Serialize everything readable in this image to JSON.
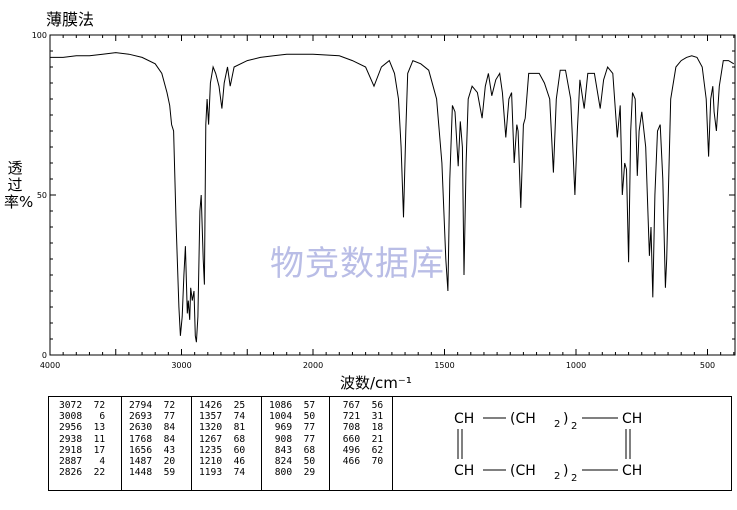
{
  "title": "薄膜法",
  "watermark": "物竞数据库",
  "chart_data": {
    "type": "line",
    "ylabel": "透过率%",
    "xlabel": "波数/cm⁻¹",
    "xlim": [
      4000,
      400
    ],
    "ylim": [
      0,
      100
    ],
    "x_ticks": [
      "4000",
      "3000",
      "2000",
      "1500",
      "1000",
      "500"
    ],
    "y_ticks": [
      "0",
      "50",
      "100"
    ],
    "spectrum": [
      [
        4000,
        93
      ],
      [
        3900,
        93
      ],
      [
        3800,
        93.5
      ],
      [
        3700,
        93.5
      ],
      [
        3600,
        94
      ],
      [
        3500,
        94.5
      ],
      [
        3400,
        94
      ],
      [
        3300,
        93
      ],
      [
        3200,
        91
      ],
      [
        3150,
        88
      ],
      [
        3110,
        82
      ],
      [
        3090,
        78
      ],
      [
        3075,
        72
      ],
      [
        3060,
        70
      ],
      [
        3040,
        40
      ],
      [
        3020,
        15
      ],
      [
        3008,
        6
      ],
      [
        2995,
        12
      ],
      [
        2982,
        25
      ],
      [
        2970,
        34
      ],
      [
        2956,
        13
      ],
      [
        2948,
        17
      ],
      [
        2938,
        11
      ],
      [
        2930,
        21
      ],
      [
        2918,
        17
      ],
      [
        2905,
        20
      ],
      [
        2895,
        6
      ],
      [
        2887,
        4
      ],
      [
        2875,
        12
      ],
      [
        2860,
        45
      ],
      [
        2850,
        50
      ],
      [
        2835,
        30
      ],
      [
        2826,
        22
      ],
      [
        2815,
        72
      ],
      [
        2805,
        80
      ],
      [
        2794,
        72
      ],
      [
        2780,
        85
      ],
      [
        2760,
        90
      ],
      [
        2740,
        88
      ],
      [
        2715,
        84
      ],
      [
        2693,
        77
      ],
      [
        2675,
        85
      ],
      [
        2650,
        90
      ],
      [
        2630,
        84
      ],
      [
        2600,
        90
      ],
      [
        2500,
        92
      ],
      [
        2400,
        93
      ],
      [
        2300,
        93.5
      ],
      [
        2200,
        94
      ],
      [
        2100,
        94
      ],
      [
        2000,
        94
      ],
      [
        1900,
        93.5
      ],
      [
        1850,
        92
      ],
      [
        1800,
        90
      ],
      [
        1768,
        84
      ],
      [
        1740,
        90
      ],
      [
        1710,
        92
      ],
      [
        1690,
        88
      ],
      [
        1675,
        80
      ],
      [
        1665,
        65
      ],
      [
        1656,
        43
      ],
      [
        1647,
        70
      ],
      [
        1640,
        88
      ],
      [
        1620,
        92
      ],
      [
        1590,
        91
      ],
      [
        1560,
        89
      ],
      [
        1530,
        80
      ],
      [
        1510,
        60
      ],
      [
        1495,
        30
      ],
      [
        1487,
        20
      ],
      [
        1480,
        55
      ],
      [
        1470,
        78
      ],
      [
        1460,
        76
      ],
      [
        1448,
        59
      ],
      [
        1440,
        73
      ],
      [
        1432,
        65
      ],
      [
        1426,
        25
      ],
      [
        1418,
        60
      ],
      [
        1410,
        80
      ],
      [
        1395,
        84
      ],
      [
        1375,
        82
      ],
      [
        1357,
        74
      ],
      [
        1345,
        84
      ],
      [
        1333,
        88
      ],
      [
        1320,
        81
      ],
      [
        1305,
        86
      ],
      [
        1290,
        88
      ],
      [
        1280,
        82
      ],
      [
        1267,
        68
      ],
      [
        1255,
        80
      ],
      [
        1245,
        82
      ],
      [
        1235,
        60
      ],
      [
        1225,
        72
      ],
      [
        1220,
        70
      ],
      [
        1210,
        46
      ],
      [
        1200,
        72
      ],
      [
        1193,
        74
      ],
      [
        1180,
        88
      ],
      [
        1160,
        88
      ],
      [
        1140,
        88
      ],
      [
        1120,
        85
      ],
      [
        1100,
        80
      ],
      [
        1086,
        57
      ],
      [
        1075,
        80
      ],
      [
        1060,
        89
      ],
      [
        1040,
        89
      ],
      [
        1020,
        80
      ],
      [
        1004,
        50
      ],
      [
        995,
        70
      ],
      [
        985,
        86
      ],
      [
        969,
        77
      ],
      [
        955,
        88
      ],
      [
        930,
        88
      ],
      [
        908,
        77
      ],
      [
        895,
        86
      ],
      [
        880,
        90
      ],
      [
        860,
        88
      ],
      [
        843,
        68
      ],
      [
        832,
        78
      ],
      [
        824,
        50
      ],
      [
        815,
        60
      ],
      [
        808,
        58
      ],
      [
        800,
        29
      ],
      [
        792,
        70
      ],
      [
        785,
        82
      ],
      [
        775,
        80
      ],
      [
        767,
        56
      ],
      [
        760,
        70
      ],
      [
        750,
        76
      ],
      [
        735,
        65
      ],
      [
        721,
        31
      ],
      [
        715,
        40
      ],
      [
        708,
        18
      ],
      [
        700,
        50
      ],
      [
        690,
        70
      ],
      [
        680,
        72
      ],
      [
        670,
        55
      ],
      [
        660,
        21
      ],
      [
        655,
        30
      ],
      [
        640,
        80
      ],
      [
        620,
        90
      ],
      [
        600,
        92
      ],
      [
        580,
        93
      ],
      [
        560,
        93.5
      ],
      [
        540,
        93
      ],
      [
        520,
        90
      ],
      [
        505,
        80
      ],
      [
        496,
        62
      ],
      [
        488,
        80
      ],
      [
        480,
        84
      ],
      [
        475,
        76
      ],
      [
        466,
        70
      ],
      [
        455,
        84
      ],
      [
        440,
        92
      ],
      [
        420,
        92
      ],
      [
        400,
        91
      ]
    ]
  },
  "peak_table": [
    [
      "3072",
      "72"
    ],
    [
      "3008",
      "6"
    ],
    [
      "2956",
      "13"
    ],
    [
      "2938",
      "11"
    ],
    [
      "2918",
      "17"
    ],
    [
      "2887",
      "4"
    ],
    [
      "2826",
      "22"
    ],
    [
      "2794",
      "72"
    ],
    [
      "2693",
      "77"
    ],
    [
      "2630",
      "84"
    ],
    [
      "1768",
      "84"
    ],
    [
      "1656",
      "43"
    ],
    [
      "1487",
      "20"
    ],
    [
      "1448",
      "59"
    ],
    [
      "1426",
      "25"
    ],
    [
      "1357",
      "74"
    ],
    [
      "1320",
      "81"
    ],
    [
      "1267",
      "68"
    ],
    [
      "1235",
      "60"
    ],
    [
      "1210",
      "46"
    ],
    [
      "1193",
      "74"
    ],
    [
      "1086",
      "57"
    ],
    [
      "1004",
      "50"
    ],
    [
      "969",
      "77"
    ],
    [
      "908",
      "77"
    ],
    [
      "843",
      "68"
    ],
    [
      "824",
      "50"
    ],
    [
      "800",
      "29"
    ],
    [
      "767",
      "56"
    ],
    [
      "721",
      "31"
    ],
    [
      "708",
      "18"
    ],
    [
      "660",
      "21"
    ],
    [
      "496",
      "62"
    ],
    [
      "466",
      "70"
    ]
  ],
  "structure": {
    "ch": "CH",
    "ch2_group": "(CH",
    "sub2": "2",
    "close": ")",
    "n": "2"
  }
}
